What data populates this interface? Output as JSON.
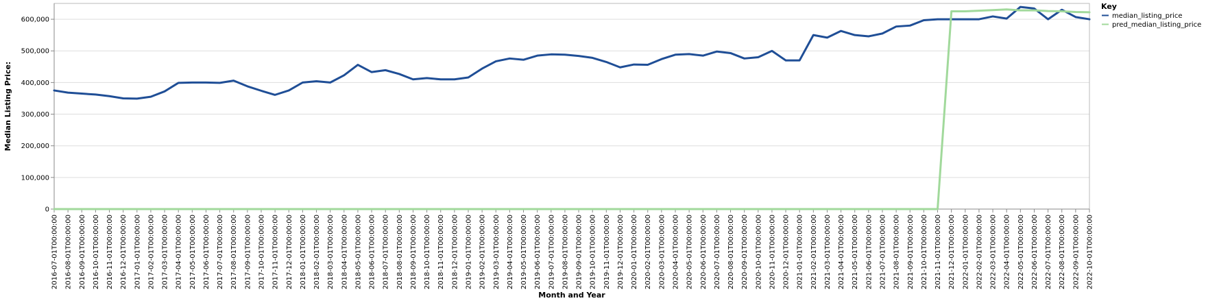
{
  "chart_data": {
    "type": "line",
    "title": "",
    "xlabel": "Month and Year",
    "ylabel": "Median Listing Price:",
    "ylim": [
      0,
      650000
    ],
    "y_ticks": [
      0,
      100000,
      200000,
      300000,
      400000,
      500000,
      600000
    ],
    "y_tick_labels": [
      "0",
      "100,000",
      "200,000",
      "300,000",
      "400,000",
      "500,000",
      "600,000"
    ],
    "grid": true,
    "legend": {
      "title": "Key",
      "placement": "top-right"
    },
    "categories": [
      "2016-07-01T00:00:00",
      "2016-08-01T00:00:00",
      "2016-09-01T00:00:00",
      "2016-10-01T00:00:00",
      "2016-11-01T00:00:00",
      "2016-12-01T00:00:00",
      "2017-01-01T00:00:00",
      "2017-02-01T00:00:00",
      "2017-03-01T00:00:00",
      "2017-04-01T00:00:00",
      "2017-05-01T00:00:00",
      "2017-06-01T00:00:00",
      "2017-07-01T00:00:00",
      "2017-08-01T00:00:00",
      "2017-09-01T00:00:00",
      "2017-10-01T00:00:00",
      "2017-11-01T00:00:00",
      "2017-12-01T00:00:00",
      "2018-01-01T00:00:00",
      "2018-02-01T00:00:00",
      "2018-03-01T00:00:00",
      "2018-04-01T00:00:00",
      "2018-05-01T00:00:00",
      "2018-06-01T00:00:00",
      "2018-07-01T00:00:00",
      "2018-08-01T00:00:00",
      "2018-09-01T00:00:00",
      "2018-10-01T00:00:00",
      "2018-11-01T00:00:00",
      "2018-12-01T00:00:00",
      "2019-01-01T00:00:00",
      "2019-02-01T00:00:00",
      "2019-03-01T00:00:00",
      "2019-04-01T00:00:00",
      "2019-05-01T00:00:00",
      "2019-06-01T00:00:00",
      "2019-07-01T00:00:00",
      "2019-08-01T00:00:00",
      "2019-09-01T00:00:00",
      "2019-10-01T00:00:00",
      "2019-11-01T00:00:00",
      "2019-12-01T00:00:00",
      "2020-01-01T00:00:00",
      "2020-02-01T00:00:00",
      "2020-03-01T00:00:00",
      "2020-04-01T00:00:00",
      "2020-05-01T00:00:00",
      "2020-06-01T00:00:00",
      "2020-07-01T00:00:00",
      "2020-08-01T00:00:00",
      "2020-09-01T00:00:00",
      "2020-10-01T00:00:00",
      "2020-11-01T00:00:00",
      "2020-12-01T00:00:00",
      "2021-01-01T00:00:00",
      "2021-02-01T00:00:00",
      "2021-03-01T00:00:00",
      "2021-04-01T00:00:00",
      "2021-05-01T00:00:00",
      "2021-06-01T00:00:00",
      "2021-07-01T00:00:00",
      "2021-08-01T00:00:00",
      "2021-09-01T00:00:00",
      "2021-10-01T00:00:00",
      "2021-11-01T00:00:00",
      "2021-12-01T00:00:00",
      "2022-01-01T00:00:00",
      "2022-02-01T00:00:00",
      "2022-03-01T00:00:00",
      "2022-04-01T00:00:00",
      "2022-05-01T00:00:00",
      "2022-06-01T00:00:00",
      "2022-07-01T00:00:00",
      "2022-08-01T00:00:00",
      "2022-09-01T00:00:00",
      "2022-10-01T00:00:00"
    ],
    "series": [
      {
        "name": "median_listing_price",
        "color": "#1f4e96",
        "values": [
          375000,
          368000,
          365000,
          362000,
          357000,
          350000,
          349000,
          355000,
          372000,
          399000,
          400000,
          400000,
          399000,
          406000,
          388000,
          374000,
          361000,
          375000,
          400000,
          404000,
          400000,
          423000,
          456000,
          433000,
          439000,
          427000,
          410000,
          414000,
          410000,
          410000,
          416000,
          444000,
          467000,
          476000,
          472000,
          485000,
          489000,
          488000,
          484000,
          478000,
          465000,
          448000,
          457000,
          456000,
          474000,
          488000,
          490000,
          485000,
          498000,
          493000,
          476000,
          480000,
          500000,
          470000,
          470000,
          550000,
          542000,
          563000,
          550000,
          546000,
          555000,
          577000,
          580000,
          597000,
          600000,
          600000,
          600000,
          600000,
          609000,
          602000,
          639000,
          634000,
          600000,
          630000,
          607000,
          600000
        ]
      },
      {
        "name": "pred_median_listing_price",
        "color": "#a1d99b",
        "values": [
          0,
          0,
          0,
          0,
          0,
          0,
          0,
          0,
          0,
          0,
          0,
          0,
          0,
          0,
          0,
          0,
          0,
          0,
          0,
          0,
          0,
          0,
          0,
          0,
          0,
          0,
          0,
          0,
          0,
          0,
          0,
          0,
          0,
          0,
          0,
          0,
          0,
          0,
          0,
          0,
          0,
          0,
          0,
          0,
          0,
          0,
          0,
          0,
          0,
          0,
          0,
          0,
          0,
          0,
          0,
          0,
          0,
          0,
          0,
          0,
          0,
          0,
          0,
          0,
          0,
          625000,
          625000,
          627000,
          629000,
          631000,
          628000,
          628000,
          626000,
          625000,
          623000,
          622000
        ]
      }
    ]
  }
}
